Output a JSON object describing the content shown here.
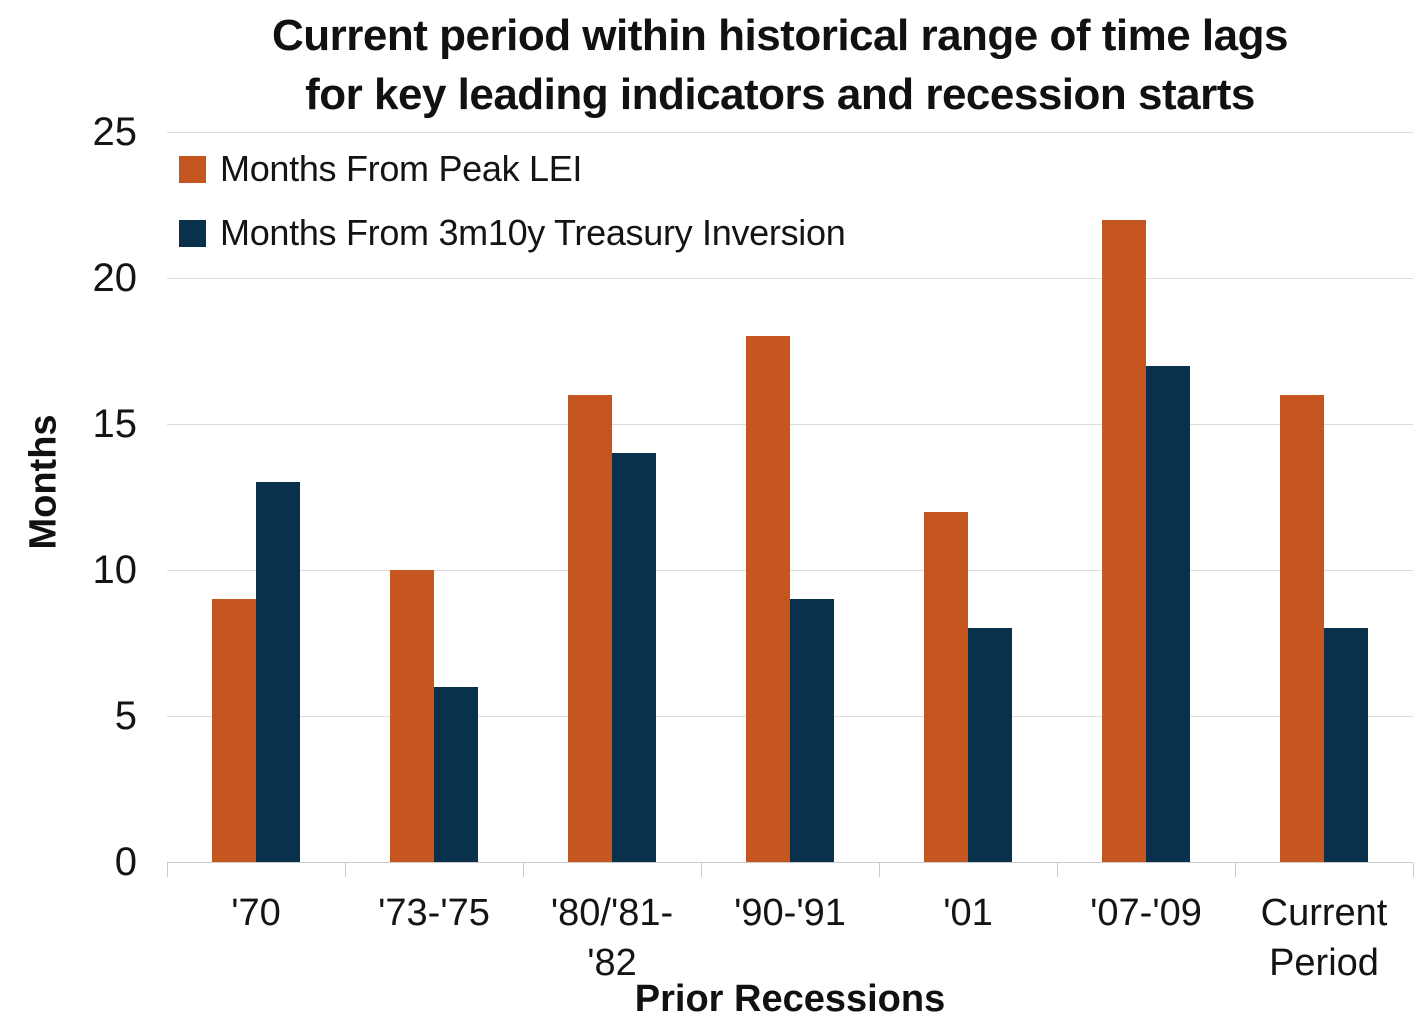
{
  "chart_data": {
    "type": "bar",
    "title": "Current period within historical range of time lags for key leading indicators and recession starts",
    "title_lines": [
      "Current period within historical range of time lags",
      "for key leading indicators and recession starts"
    ],
    "categories": [
      "'70",
      "'73-'75",
      "'80/'81-'82",
      "'90-'91",
      "'01",
      "'07-'09",
      "Current Period"
    ],
    "category_label_lines": [
      [
        "'70"
      ],
      [
        "'73-'75"
      ],
      [
        "'80/'81-",
        "'82"
      ],
      [
        "'90-'91"
      ],
      [
        "'01"
      ],
      [
        "'07-'09"
      ],
      [
        "Current",
        "Period"
      ]
    ],
    "series": [
      {
        "name": "Months From Peak LEI",
        "color": "#C5561F",
        "values": [
          9,
          10,
          16,
          18,
          12,
          22,
          16
        ]
      },
      {
        "name": "Months From 3m10y Treasury Inversion",
        "color": "#0A314C",
        "values": [
          13,
          6,
          14,
          9,
          8,
          17,
          8
        ]
      }
    ],
    "xlabel": "Prior Recessions",
    "ylabel": "Months",
    "ylim": [
      0,
      25
    ],
    "yticks": [
      0,
      5,
      10,
      15,
      20,
      25
    ],
    "grid": "horizontal",
    "legend_position": "top-left-inside",
    "colors": {
      "gridline": "#dcdcdc",
      "axis_line": "#cccccc",
      "text": "#141414"
    }
  }
}
